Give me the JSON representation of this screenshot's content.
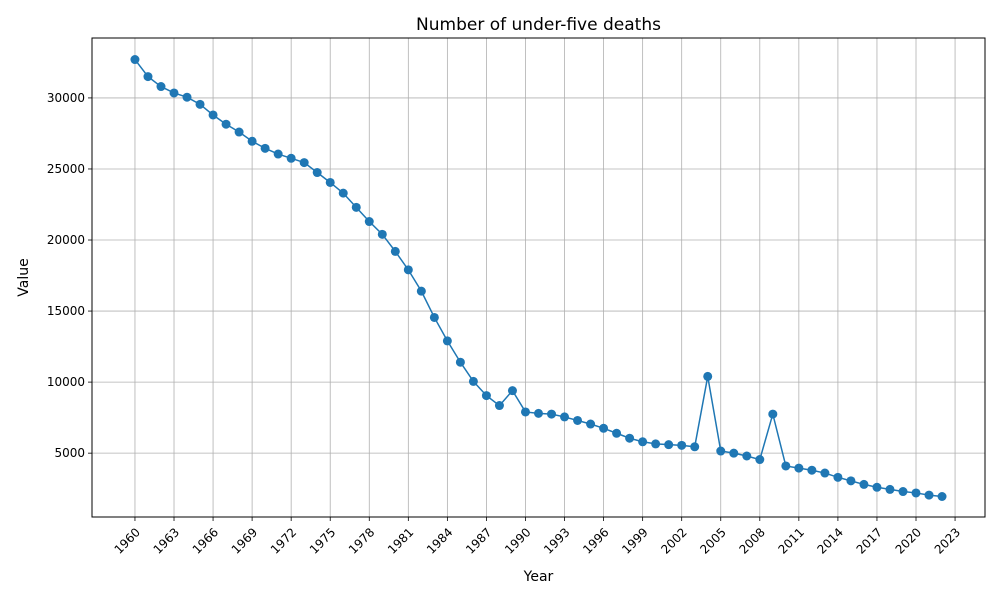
{
  "chart_data": {
    "type": "line",
    "title": "Number of under-five deaths",
    "xlabel": "Year",
    "ylabel": "Value",
    "xlim": [
      1956.7,
      2025.3
    ],
    "ylim": [
      507,
      34217
    ],
    "x_ticks": [
      1960,
      1963,
      1966,
      1969,
      1972,
      1975,
      1978,
      1981,
      1984,
      1987,
      1990,
      1993,
      1996,
      1999,
      2002,
      2005,
      2008,
      2011,
      2014,
      2017,
      2020,
      2023
    ],
    "y_ticks": [
      5000,
      10000,
      15000,
      20000,
      25000,
      30000
    ],
    "grid": true,
    "color": "#1f77b4",
    "series": [
      {
        "x": [
          1960,
          1961,
          1962,
          1963,
          1964,
          1965,
          1966,
          1967,
          1968,
          1969,
          1970,
          1971,
          1972,
          1973,
          1974,
          1975,
          1976,
          1977,
          1978,
          1979,
          1980,
          1981,
          1982,
          1983,
          1984,
          1985,
          1986,
          1987,
          1988,
          1989,
          1990,
          1991,
          1992,
          1993,
          1994,
          1995,
          1996,
          1997,
          1998,
          1999,
          2000,
          2001,
          2002,
          2003,
          2004,
          2005,
          2006,
          2007,
          2008,
          2009,
          2010,
          2011,
          2012,
          2013,
          2014,
          2015,
          2016,
          2017,
          2018,
          2019,
          2020,
          2021,
          2022
        ],
        "y": [
          32700,
          31500,
          30800,
          30350,
          30050,
          29550,
          28800,
          28150,
          27600,
          26950,
          26450,
          26050,
          25750,
          25450,
          24750,
          24050,
          23300,
          22300,
          21300,
          20400,
          19200,
          17900,
          16400,
          14550,
          12900,
          11400,
          10050,
          9050,
          8350,
          9400,
          7900,
          7800,
          7750,
          7550,
          7300,
          7050,
          6750,
          6400,
          6050,
          5800,
          5650,
          5600,
          5550,
          5450,
          10400,
          5150,
          5000,
          4800,
          4550,
          7750,
          4100,
          3950,
          3800,
          3600,
          3300,
          3050,
          2800,
          2600,
          2450,
          2300,
          2200,
          2050,
          1950
        ]
      }
    ]
  }
}
